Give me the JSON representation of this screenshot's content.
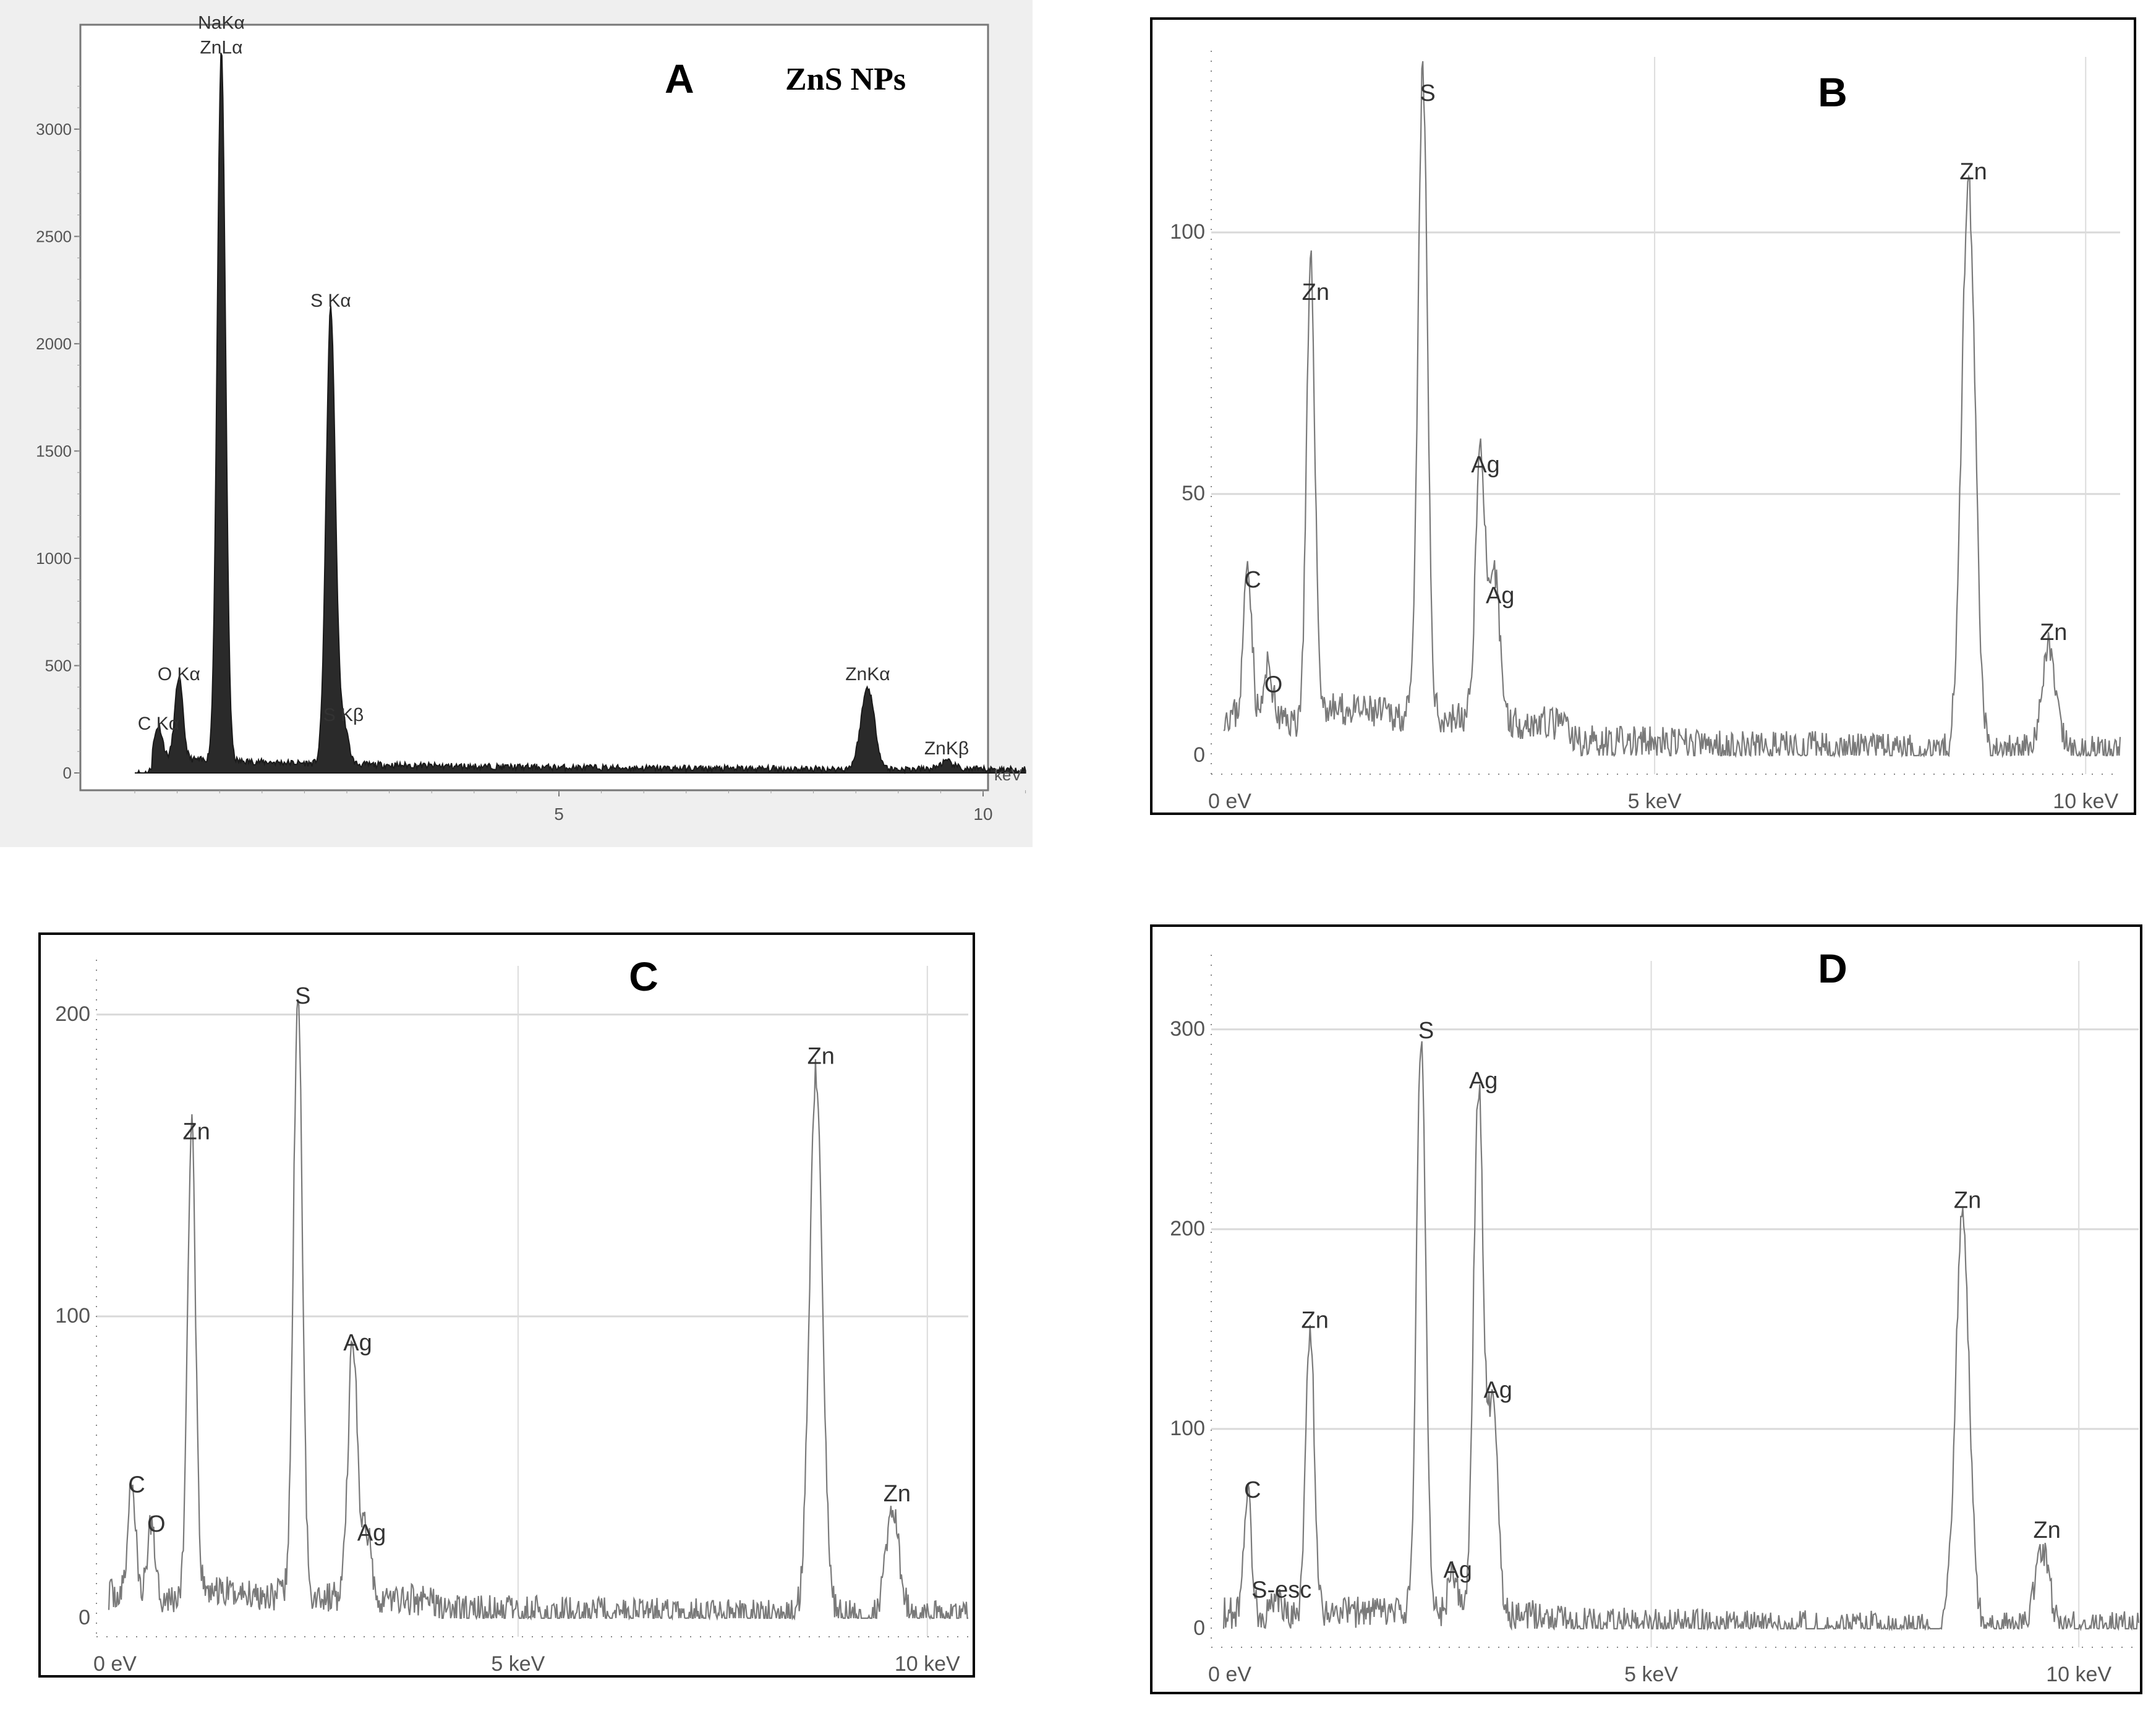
{
  "chart_data": [
    {
      "type": "line",
      "panel": "A",
      "title": "ZnS NPs",
      "xlabel": "keV",
      "ylabel": "",
      "xlim": [
        0,
        10.5
      ],
      "ylim": [
        0,
        3400
      ],
      "x_ticks": [
        "5",
        "10"
      ],
      "y_ticks": [
        "0",
        "500",
        "1000",
        "1500",
        "2000",
        "2500",
        "3000"
      ],
      "series": [
        {
          "peaks": [
            {
              "x": 0.28,
              "y": 150
            },
            {
              "x": 0.52,
              "y": 380
            },
            {
              "x": 1.02,
              "y": 3300
            },
            {
              "x": 2.31,
              "y": 2120
            },
            {
              "x": 2.46,
              "y": 190
            },
            {
              "x": 8.64,
              "y": 380
            },
            {
              "x": 9.57,
              "y": 35
            }
          ]
        }
      ],
      "annotations": [
        {
          "x": 0.28,
          "y": 150,
          "lines": [
            "C Kα"
          ]
        },
        {
          "x": 0.52,
          "y": 380,
          "lines": [
            "O Kα"
          ]
        },
        {
          "x": 1.02,
          "y": 3300,
          "lines": [
            "NaKα",
            "ZnLα"
          ]
        },
        {
          "x": 2.31,
          "y": 2120,
          "lines": [
            "S Kα"
          ]
        },
        {
          "x": 2.46,
          "y": 190,
          "lines": [
            "S Kβ"
          ]
        },
        {
          "x": 8.64,
          "y": 380,
          "lines": [
            "ZnKα"
          ]
        },
        {
          "x": 9.57,
          "y": 35,
          "lines": [
            "ZnKβ"
          ]
        }
      ]
    },
    {
      "type": "line",
      "panel": "B",
      "title": "",
      "xlabel": "",
      "ylabel": "",
      "xlim": [
        0,
        10.4
      ],
      "ylim": [
        0,
        130
      ],
      "x_ticks": [
        "0 eV",
        "5 keV",
        "10 keV"
      ],
      "y_ticks": [
        "0",
        "50",
        "100"
      ],
      "series": [
        {
          "peaks": [
            {
              "x": 0.28,
              "y": 30
            },
            {
              "x": 0.52,
              "y": 10
            },
            {
              "x": 1.01,
              "y": 85
            },
            {
              "x": 2.31,
              "y": 123
            },
            {
              "x": 2.98,
              "y": 52
            },
            {
              "x": 3.15,
              "y": 27
            },
            {
              "x": 8.64,
              "y": 108
            },
            {
              "x": 9.57,
              "y": 20
            }
          ]
        }
      ],
      "annotations": [
        {
          "x": 0.28,
          "y": 30,
          "lines": [
            "C"
          ]
        },
        {
          "x": 0.52,
          "y": 10,
          "lines": [
            "O"
          ]
        },
        {
          "x": 1.01,
          "y": 85,
          "lines": [
            "Zn"
          ]
        },
        {
          "x": 2.31,
          "y": 123,
          "lines": [
            "S"
          ]
        },
        {
          "x": 2.98,
          "y": 52,
          "lines": [
            "Ag"
          ]
        },
        {
          "x": 3.15,
          "y": 27,
          "lines": [
            "Ag"
          ]
        },
        {
          "x": 8.64,
          "y": 108,
          "lines": [
            "Zn"
          ]
        },
        {
          "x": 9.57,
          "y": 20,
          "lines": [
            "Zn"
          ]
        }
      ],
      "panel_letter": "B"
    },
    {
      "type": "line",
      "panel": "C",
      "title": "",
      "xlabel": "",
      "ylabel": "",
      "xlim": [
        0,
        10.5
      ],
      "ylim": [
        0,
        210
      ],
      "x_ticks": [
        "0 eV",
        "5 keV",
        "10 keV"
      ],
      "y_ticks": [
        "0",
        "100",
        "200"
      ],
      "series": [
        {
          "peaks": [
            {
              "x": 0.28,
              "y": 38
            },
            {
              "x": 0.52,
              "y": 25
            },
            {
              "x": 1.01,
              "y": 155
            },
            {
              "x": 2.31,
              "y": 200
            },
            {
              "x": 2.98,
              "y": 85
            },
            {
              "x": 3.15,
              "y": 22
            },
            {
              "x": 8.64,
              "y": 180
            },
            {
              "x": 9.57,
              "y": 35
            }
          ]
        }
      ],
      "annotations": [
        {
          "x": 0.28,
          "y": 38,
          "lines": [
            "C"
          ]
        },
        {
          "x": 0.52,
          "y": 25,
          "lines": [
            "O"
          ]
        },
        {
          "x": 1.01,
          "y": 155,
          "lines": [
            "Zn"
          ]
        },
        {
          "x": 2.31,
          "y": 200,
          "lines": [
            "S"
          ]
        },
        {
          "x": 2.98,
          "y": 85,
          "lines": [
            "Ag"
          ]
        },
        {
          "x": 3.15,
          "y": 22,
          "lines": [
            "Ag"
          ]
        },
        {
          "x": 8.64,
          "y": 180,
          "lines": [
            "Zn"
          ]
        },
        {
          "x": 9.57,
          "y": 35,
          "lines": [
            "Zn"
          ]
        }
      ],
      "panel_letter": "C"
    },
    {
      "type": "line",
      "panel": "D",
      "title": "",
      "xlabel": "",
      "ylabel": "",
      "xlim": [
        0,
        10.7
      ],
      "ylim": [
        0,
        325
      ],
      "x_ticks": [
        "0 eV",
        "5 keV",
        "10 keV"
      ],
      "y_ticks": [
        "0",
        "100",
        "200",
        "300"
      ],
      "series": [
        {
          "peaks": [
            {
              "x": 0.28,
              "y": 60
            },
            {
              "x": 0.62,
              "y": 10
            },
            {
              "x": 1.01,
              "y": 145
            },
            {
              "x": 2.31,
              "y": 290
            },
            {
              "x": 2.68,
              "y": 20
            },
            {
              "x": 2.98,
              "y": 265
            },
            {
              "x": 3.15,
              "y": 110
            },
            {
              "x": 8.64,
              "y": 205
            },
            {
              "x": 9.57,
              "y": 40
            }
          ]
        }
      ],
      "annotations": [
        {
          "x": 0.28,
          "y": 60,
          "lines": [
            "C"
          ]
        },
        {
          "x": 0.62,
          "y": 10,
          "lines": [
            "S-esc"
          ]
        },
        {
          "x": 1.01,
          "y": 145,
          "lines": [
            "Zn"
          ]
        },
        {
          "x": 2.31,
          "y": 290,
          "lines": [
            "S"
          ]
        },
        {
          "x": 2.68,
          "y": 20,
          "lines": [
            "Ag"
          ]
        },
        {
          "x": 2.98,
          "y": 265,
          "lines": [
            "Ag"
          ]
        },
        {
          "x": 3.15,
          "y": 110,
          "lines": [
            "Ag"
          ]
        },
        {
          "x": 8.64,
          "y": 205,
          "lines": [
            "Zn"
          ]
        },
        {
          "x": 9.57,
          "y": 40,
          "lines": [
            "Zn"
          ]
        }
      ],
      "panel_letter": "D"
    }
  ],
  "panel_a": {
    "letter": "A",
    "subtitle": "ZnS NPs",
    "unit": "keV"
  },
  "colors": {
    "panel_a_fill": "#2a2a2a",
    "spectrum_line": "#7a7a7a",
    "grid": "#d9d9d9",
    "axis": "#777777"
  }
}
